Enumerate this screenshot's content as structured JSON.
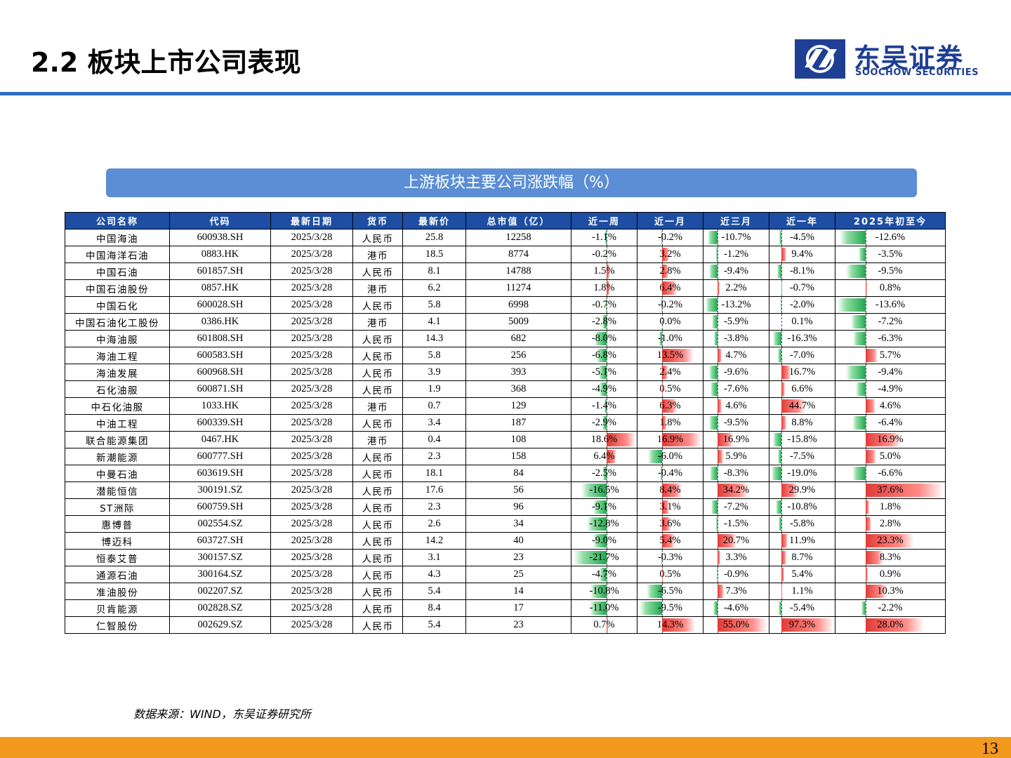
{
  "header": {
    "title": "2.2 板块上市公司表现",
    "logo_cn": "东吴证券",
    "logo_en": "SOOCHOW SECURITIES"
  },
  "caption": "上游板块主要公司涨跌幅（%）",
  "colors": {
    "accent": "#2e6fbd",
    "header_fill": "#1d4ea3",
    "positive": "#e23b36",
    "negative": "#1fa84f",
    "footer": "#f39a1e"
  },
  "table": {
    "columns": [
      "公司名称",
      "代码",
      "最新日期",
      "货币",
      "最新价",
      "总市值（亿）",
      "近一周",
      "近一月",
      "近三月",
      "近一年",
      "2025年初至今"
    ],
    "rows": [
      {
        "name": "中国海油",
        "code": "600938.SH",
        "date": "2025/3/28",
        "currency": "人民币",
        "price": "25.8",
        "mcap": "12258",
        "w": "-1.1%",
        "m": "-0.2%",
        "q": "-10.7%",
        "y": "-4.5%",
        "ytd": "-12.6%"
      },
      {
        "name": "中国海洋石油",
        "code": "0883.HK",
        "date": "2025/3/28",
        "currency": "港币",
        "price": "18.5",
        "mcap": "8774",
        "w": "-0.2%",
        "m": "3.2%",
        "q": "-1.2%",
        "y": "9.4%",
        "ytd": "-3.5%"
      },
      {
        "name": "中国石油",
        "code": "601857.SH",
        "date": "2025/3/28",
        "currency": "人民币",
        "price": "8.1",
        "mcap": "14788",
        "w": "1.5%",
        "m": "2.8%",
        "q": "-9.4%",
        "y": "-8.1%",
        "ytd": "-9.5%"
      },
      {
        "name": "中国石油股份",
        "code": "0857.HK",
        "date": "2025/3/28",
        "currency": "港币",
        "price": "6.2",
        "mcap": "11274",
        "w": "1.8%",
        "m": "6.4%",
        "q": "2.2%",
        "y": "-0.7%",
        "ytd": "0.8%"
      },
      {
        "name": "中国石化",
        "code": "600028.SH",
        "date": "2025/3/28",
        "currency": "人民币",
        "price": "5.8",
        "mcap": "6998",
        "w": "-0.7%",
        "m": "-0.2%",
        "q": "-13.2%",
        "y": "-2.0%",
        "ytd": "-13.6%"
      },
      {
        "name": "中国石油化工股份",
        "code": "0386.HK",
        "date": "2025/3/28",
        "currency": "港币",
        "price": "4.1",
        "mcap": "5009",
        "w": "-2.8%",
        "m": "0.0%",
        "q": "-5.9%",
        "y": "0.1%",
        "ytd": "-7.2%"
      },
      {
        "name": "中海油服",
        "code": "601808.SH",
        "date": "2025/3/28",
        "currency": "人民币",
        "price": "14.3",
        "mcap": "682",
        "w": "-8.0%",
        "m": "-1.0%",
        "q": "-3.8%",
        "y": "-16.3%",
        "ytd": "-6.3%"
      },
      {
        "name": "海油工程",
        "code": "600583.SH",
        "date": "2025/3/28",
        "currency": "人民币",
        "price": "5.8",
        "mcap": "256",
        "w": "-6.8%",
        "m": "13.5%",
        "q": "4.7%",
        "y": "-7.0%",
        "ytd": "5.7%"
      },
      {
        "name": "海油发展",
        "code": "600968.SH",
        "date": "2025/3/28",
        "currency": "人民币",
        "price": "3.9",
        "mcap": "393",
        "w": "-5.1%",
        "m": "2.4%",
        "q": "-9.6%",
        "y": "16.7%",
        "ytd": "-9.4%"
      },
      {
        "name": "石化油服",
        "code": "600871.SH",
        "date": "2025/3/28",
        "currency": "人民币",
        "price": "1.9",
        "mcap": "368",
        "w": "-4.9%",
        "m": "0.5%",
        "q": "-7.6%",
        "y": "6.6%",
        "ytd": "-4.9%"
      },
      {
        "name": "中石化油服",
        "code": "1033.HK",
        "date": "2025/3/28",
        "currency": "港币",
        "price": "0.7",
        "mcap": "129",
        "w": "-1.4%",
        "m": "6.3%",
        "q": "4.6%",
        "y": "44.7%",
        "ytd": "4.6%"
      },
      {
        "name": "中油工程",
        "code": "600339.SH",
        "date": "2025/3/28",
        "currency": "人民币",
        "price": "3.4",
        "mcap": "187",
        "w": "-2.9%",
        "m": "1.8%",
        "q": "-9.5%",
        "y": "8.8%",
        "ytd": "-6.4%"
      },
      {
        "name": "联合能源集团",
        "code": "0467.HK",
        "date": "2025/3/28",
        "currency": "港币",
        "price": "0.4",
        "mcap": "108",
        "w": "18.6%",
        "m": "16.9%",
        "q": "16.9%",
        "y": "-15.8%",
        "ytd": "16.9%"
      },
      {
        "name": "新潮能源",
        "code": "600777.SH",
        "date": "2025/3/28",
        "currency": "人民币",
        "price": "2.3",
        "mcap": "158",
        "w": "6.4%",
        "m": "-6.0%",
        "q": "5.9%",
        "y": "-7.5%",
        "ytd": "5.0%"
      },
      {
        "name": "中曼石油",
        "code": "603619.SH",
        "date": "2025/3/28",
        "currency": "人民币",
        "price": "18.1",
        "mcap": "84",
        "w": "-2.5%",
        "m": "-0.4%",
        "q": "-8.3%",
        "y": "-19.0%",
        "ytd": "-6.6%"
      },
      {
        "name": "潜能恒信",
        "code": "300191.SZ",
        "date": "2025/3/28",
        "currency": "人民币",
        "price": "17.6",
        "mcap": "56",
        "w": "-16.5%",
        "m": "8.4%",
        "q": "34.2%",
        "y": "29.9%",
        "ytd": "37.6%"
      },
      {
        "name": "ST洲际",
        "code": "600759.SH",
        "date": "2025/3/28",
        "currency": "人民币",
        "price": "2.3",
        "mcap": "96",
        "w": "-9.1%",
        "m": "3.1%",
        "q": "-7.2%",
        "y": "-10.8%",
        "ytd": "1.8%"
      },
      {
        "name": "惠博普",
        "code": "002554.SZ",
        "date": "2025/3/28",
        "currency": "人民币",
        "price": "2.6",
        "mcap": "34",
        "w": "-12.8%",
        "m": "3.6%",
        "q": "-1.5%",
        "y": "-5.8%",
        "ytd": "2.8%"
      },
      {
        "name": "博迈科",
        "code": "603727.SH",
        "date": "2025/3/28",
        "currency": "人民币",
        "price": "14.2",
        "mcap": "40",
        "w": "-9.0%",
        "m": "5.4%",
        "q": "20.7%",
        "y": "11.9%",
        "ytd": "23.3%"
      },
      {
        "name": "恒泰艾普",
        "code": "300157.SZ",
        "date": "2025/3/28",
        "currency": "人民币",
        "price": "3.1",
        "mcap": "23",
        "w": "-21.7%",
        "m": "-0.3%",
        "q": "3.3%",
        "y": "8.7%",
        "ytd": "8.3%"
      },
      {
        "name": "通源石油",
        "code": "300164.SZ",
        "date": "2025/3/28",
        "currency": "人民币",
        "price": "4.3",
        "mcap": "25",
        "w": "-4.7%",
        "m": "0.5%",
        "q": "-0.9%",
        "y": "5.4%",
        "ytd": "0.9%"
      },
      {
        "name": "准油股份",
        "code": "002207.SZ",
        "date": "2025/3/28",
        "currency": "人民币",
        "price": "5.4",
        "mcap": "14",
        "w": "-10.8%",
        "m": "-6.5%",
        "q": "7.3%",
        "y": "1.1%",
        "ytd": "10.3%"
      },
      {
        "name": "贝肯能源",
        "code": "002828.SZ",
        "date": "2025/3/28",
        "currency": "人民币",
        "price": "8.4",
        "mcap": "17",
        "w": "-11.0%",
        "m": "-9.5%",
        "q": "-4.6%",
        "y": "-5.4%",
        "ytd": "-2.2%"
      },
      {
        "name": "仁智股份",
        "code": "002629.SZ",
        "date": "2025/3/28",
        "currency": "人民币",
        "price": "5.4",
        "mcap": "23",
        "w": "0.7%",
        "m": "14.3%",
        "q": "55.0%",
        "y": "97.3%",
        "ytd": "28.0%"
      }
    ]
  },
  "source": "数据来源：WIND，东吴证券研究所",
  "page_number": "13"
}
